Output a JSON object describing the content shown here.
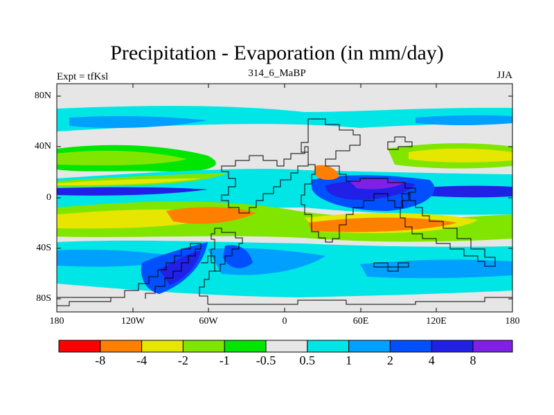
{
  "map": {
    "title": "Precipitation - Evaporation (in mm/day)",
    "experiment": "Expt = tfKsl",
    "stamp": "314_6_MaBP",
    "season": "JJA",
    "lat_ticks": [
      "80N",
      "40N",
      "0",
      "40S",
      "80S"
    ],
    "lon_ticks": [
      "180",
      "120W",
      "60W",
      "0",
      "60E",
      "120E",
      "180"
    ],
    "background_color": "#e6e6e6"
  },
  "colorbar": {
    "colors": [
      "#ff0000",
      "#ff7f00",
      "#e6e600",
      "#80e600",
      "#00e600",
      "#e6e6e6",
      "#00e6e6",
      "#00a0ff",
      "#0050ff",
      "#2020e6",
      "#8020e6"
    ],
    "labels": [
      "-8",
      "-4",
      "-2",
      "-1",
      "-0.5",
      "0.5",
      "1",
      "2",
      "4",
      "8"
    ]
  }
}
